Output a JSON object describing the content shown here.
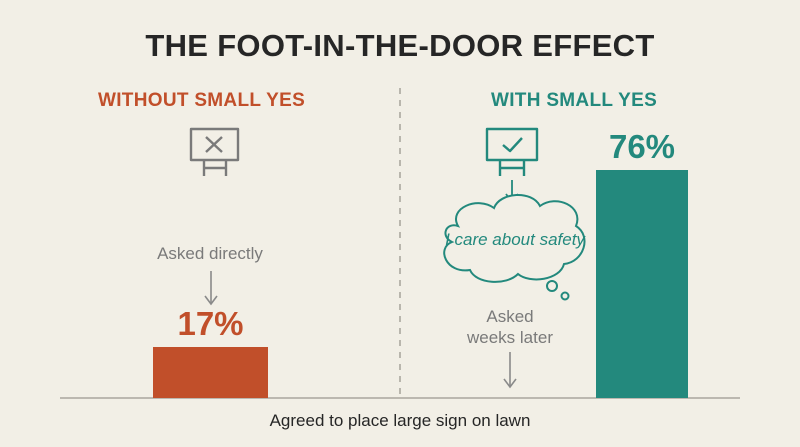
{
  "title": "THE FOOT-IN-THE-DOOR EFFECT",
  "colors": {
    "without": "#c14f2a",
    "with": "#23897d",
    "text": "#262626",
    "muted": "#7a7a7a",
    "background": "#f2efe6"
  },
  "left": {
    "heading": "WITHOUT SMALL YES",
    "icon": "sign-rejected-icon",
    "note": "Asked directly"
  },
  "right": {
    "heading": "WITH SMALL YES",
    "icon": "sign-accepted-icon",
    "thought": "I care about safety",
    "note_line1": "Asked",
    "note_line2": "weeks later"
  },
  "chart_data": {
    "type": "bar",
    "categories": [
      "WITHOUT SMALL YES",
      "WITH SMALL YES"
    ],
    "values": [
      17,
      76
    ],
    "value_labels": [
      "17%",
      "76%"
    ],
    "xlabel": "Agreed to place large sign on lawn",
    "ylim": [
      0,
      100
    ],
    "grid": false
  }
}
